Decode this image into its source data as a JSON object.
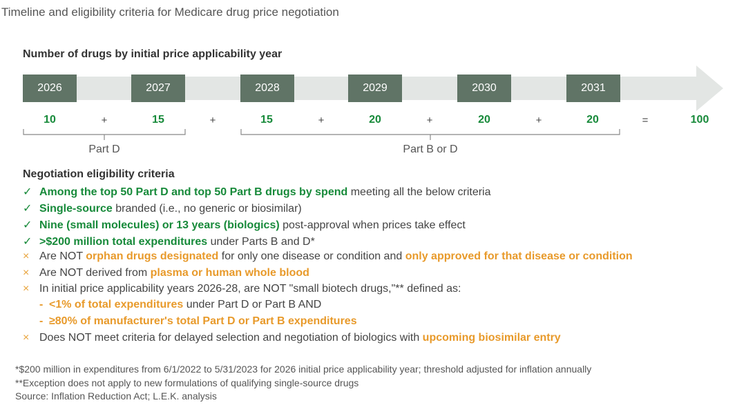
{
  "title": "Timeline and eligibility criteria for Medicare drug price negotiation",
  "timeline": {
    "heading": "Number of drugs by initial price applicability year",
    "years": [
      "2026",
      "2027",
      "2028",
      "2029",
      "2030",
      "2031"
    ],
    "counts": [
      "10",
      "15",
      "15",
      "20",
      "20",
      "20"
    ],
    "plus": "+",
    "equals": "=",
    "total": "100",
    "groups": [
      "Part D",
      "Part B or D"
    ]
  },
  "criteria": {
    "heading": "Negotiation eligibility criteria",
    "items": [
      {
        "mark": "✓",
        "parts": [
          {
            "t": "Among the top 50 Part D and top 50 Part B drugs by spend",
            "s": "g"
          },
          {
            "t": " meeting all the below criteria",
            "s": ""
          }
        ]
      },
      {
        "mark": "✓",
        "parts": [
          {
            "t": "Single-source",
            "s": "g"
          },
          {
            "t": " branded (i.e., no generic or biosimilar)",
            "s": ""
          }
        ]
      },
      {
        "mark": "✓",
        "parts": [
          {
            "t": "Nine (small molecules) or 13 years (biologics)",
            "s": "g"
          },
          {
            "t": " post-approval when prices take effect",
            "s": ""
          }
        ]
      },
      {
        "mark": "✓",
        "parts": [
          {
            "t": ">$200 million total expenditures",
            "s": "g"
          },
          {
            "t": " under Parts B and D*",
            "s": ""
          }
        ]
      },
      {
        "mark": "×",
        "parts": [
          {
            "t": "Are NOT ",
            "s": ""
          },
          {
            "t": "orphan drugs designated",
            "s": "o"
          },
          {
            "t": " for only one disease or condition and ",
            "s": ""
          },
          {
            "t": "only approved for that disease or condition",
            "s": "o"
          }
        ]
      },
      {
        "mark": "×",
        "parts": [
          {
            "t": "Are NOT derived from ",
            "s": ""
          },
          {
            "t": "plasma or human whole blood",
            "s": "o"
          }
        ]
      },
      {
        "mark": "×",
        "parts": [
          {
            "t": "In initial price applicability years 2026-28, are NOT \"small biotech drugs,\"** defined as:",
            "s": ""
          }
        ]
      },
      {
        "mark": "-",
        "sub": true,
        "parts": [
          {
            "t": "<1% of total expenditures",
            "s": "o"
          },
          {
            "t": " under Part D or Part B AND",
            "s": ""
          }
        ]
      },
      {
        "mark": "-",
        "sub": true,
        "parts": [
          {
            "t": "≥80% of manufacturer's total Part D or Part B expenditures",
            "s": "o"
          }
        ]
      },
      {
        "mark": "×",
        "parts": [
          {
            "t": "Does NOT meet criteria for delayed selection and negotiation of biologics with ",
            "s": ""
          },
          {
            "t": "upcoming biosimilar entry",
            "s": "o"
          }
        ]
      }
    ]
  },
  "footnotes": [
    "*$200 million in expenditures from 6/1/2022 to 5/31/2023 for 2026 initial price applicability year; threshold adjusted for inflation annually",
    "**Exception does not apply to new formulations of qualifying single-source drugs",
    "Source: Inflation Reduction Act; L.E.K. analysis"
  ]
}
